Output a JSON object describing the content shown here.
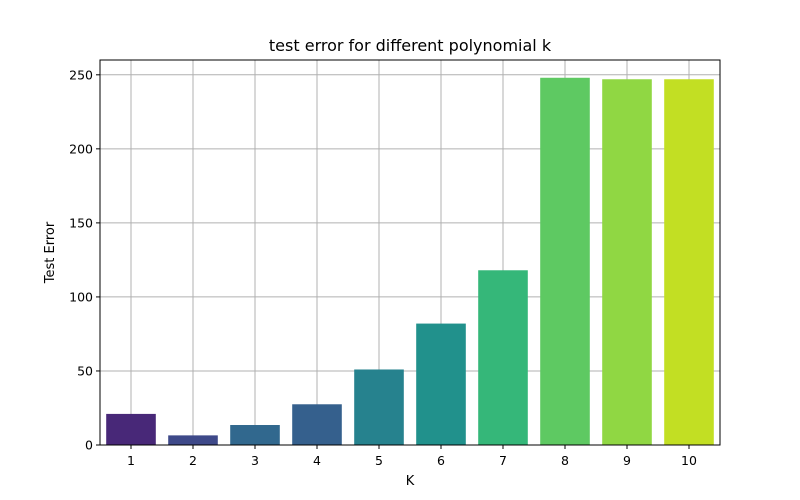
{
  "chart_data": {
    "type": "bar",
    "title": "test error for different polynomial k",
    "xlabel": "K",
    "ylabel": "Test Error",
    "categories": [
      "1",
      "2",
      "3",
      "4",
      "5",
      "6",
      "7",
      "8",
      "9",
      "10"
    ],
    "values": [
      21,
      6.5,
      13.5,
      27.5,
      51,
      82,
      118,
      248,
      247,
      247
    ],
    "ylim": [
      0,
      260
    ],
    "yticks": [
      0,
      50,
      100,
      150,
      200,
      250
    ],
    "grid": true,
    "colors": [
      "#482878",
      "#3e4989",
      "#31688e",
      "#35608d",
      "#26828e",
      "#21918c",
      "#35b779",
      "#5ec962",
      "#90d743",
      "#c2df23"
    ]
  }
}
